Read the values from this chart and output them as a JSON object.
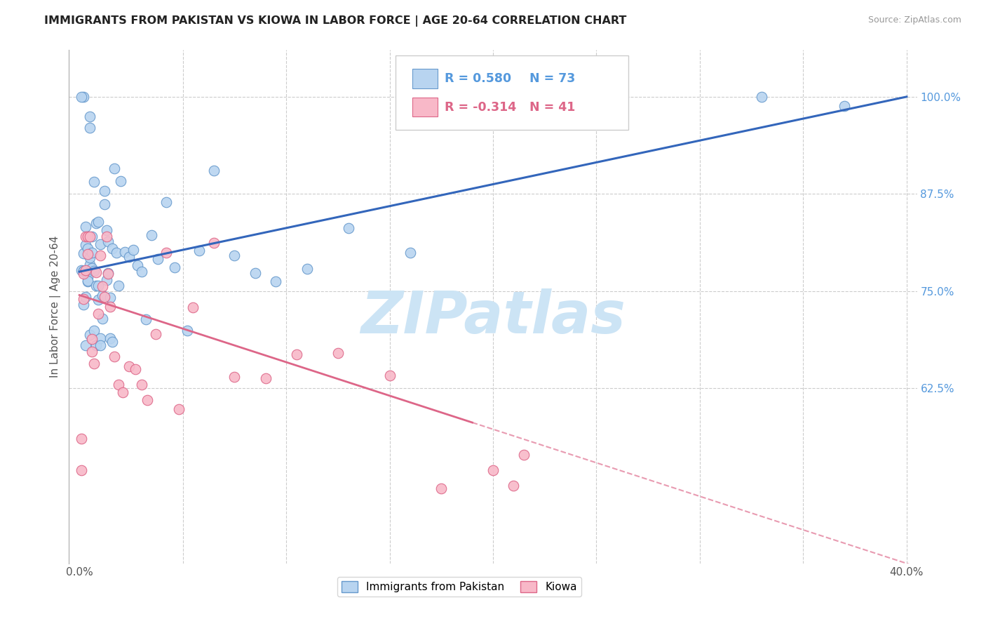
{
  "title": "IMMIGRANTS FROM PAKISTAN VS KIOWA IN LABOR FORCE | AGE 20-64 CORRELATION CHART",
  "source": "Source: ZipAtlas.com",
  "ylabel": "In Labor Force | Age 20-64",
  "xlim": [
    -0.005,
    0.405
  ],
  "ylim": [
    0.4,
    1.06
  ],
  "pakistan_color": "#b8d4f0",
  "pakistan_edge_color": "#6699cc",
  "kiowa_color": "#f8b8c8",
  "kiowa_edge_color": "#dd6688",
  "regression_blue": "#3366bb",
  "regression_pink": "#dd6688",
  "grid_color": "#cccccc",
  "right_tick_color": "#5599dd",
  "watermark_color": "#cce4f5",
  "legend_R_pak": "R = 0.580",
  "legend_N_pak": "N = 73",
  "legend_R_kiowa": "R = -0.314",
  "legend_N_kiowa": "N = 41"
}
